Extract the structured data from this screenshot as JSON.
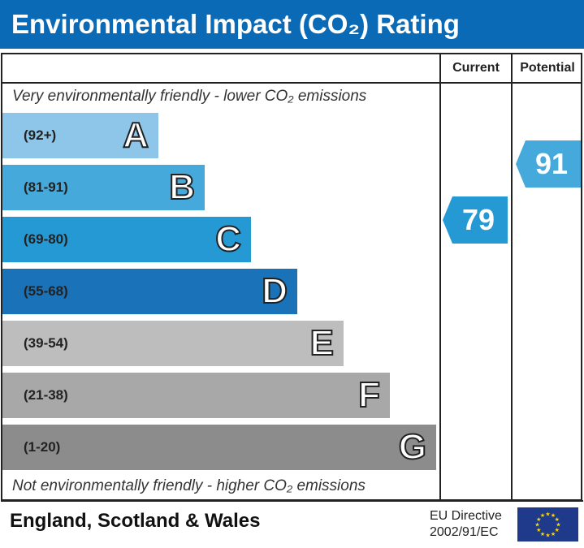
{
  "title": "Environmental Impact (CO₂) Rating",
  "columns": {
    "current": "Current",
    "potential": "Potential"
  },
  "top_note": "Very environmentally friendly - lower CO₂ emissions",
  "bottom_note": "Not environmentally friendly - higher CO₂ emissions",
  "footer": {
    "region": "England, Scotland & Wales",
    "directive_line1": "EU Directive",
    "directive_line2": "2002/91/EC"
  },
  "chart_data": {
    "type": "bar",
    "title": "Environmental Impact (CO₂) Rating",
    "bands": [
      {
        "letter": "A",
        "range": "(92+)",
        "color": "#8dc6e8"
      },
      {
        "letter": "B",
        "range": "(81-91)",
        "color": "#45a9dc"
      },
      {
        "letter": "C",
        "range": "(69-80)",
        "color": "#2599d4"
      },
      {
        "letter": "D",
        "range": "(55-68)",
        "color": "#1a72b8"
      },
      {
        "letter": "E",
        "range": "(39-54)",
        "color": "#bdbdbd"
      },
      {
        "letter": "F",
        "range": "(21-38)",
        "color": "#a8a8a8"
      },
      {
        "letter": "G",
        "range": "(1-20)",
        "color": "#8c8c8c"
      }
    ],
    "current": {
      "value": 79,
      "band": "C",
      "color": "#2599d4"
    },
    "potential": {
      "value": 91,
      "band": "B",
      "color": "#45a9dc"
    }
  }
}
